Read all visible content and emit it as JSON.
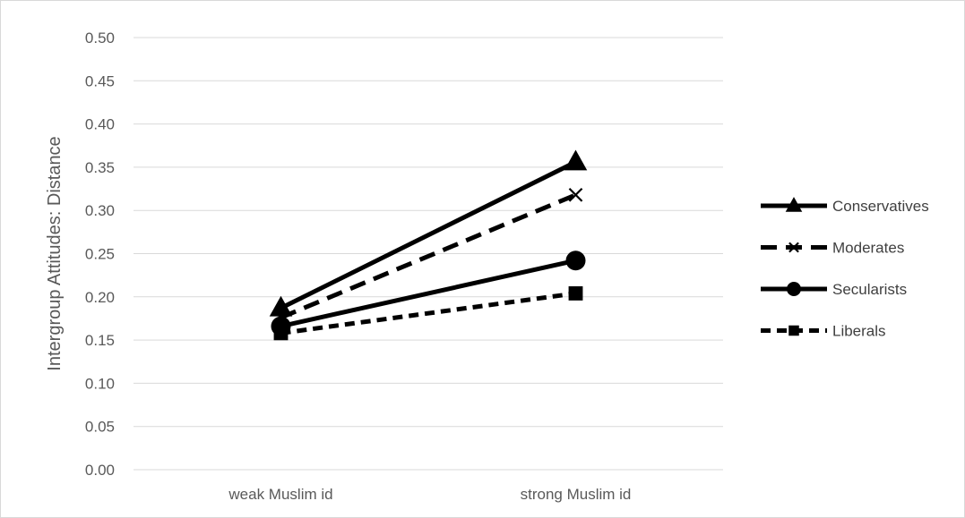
{
  "chart_data": {
    "type": "line",
    "title": "",
    "xlabel": "",
    "ylabel": "Intergroup Attitudes: Distance",
    "categories": [
      "weak Muslim id",
      "strong Muslim id"
    ],
    "ylim": [
      0,
      0.5
    ],
    "yticks": [
      "0.00",
      "0.05",
      "0.10",
      "0.15",
      "0.20",
      "0.25",
      "0.30",
      "0.35",
      "0.40",
      "0.45",
      "0.50"
    ],
    "grid": true,
    "legend_position": "right",
    "series": [
      {
        "name": "Conservatives",
        "values": [
          0.187,
          0.356
        ],
        "line": "solid",
        "marker": "triangle",
        "color": "#000000"
      },
      {
        "name": "Moderates",
        "values": [
          0.176,
          0.318
        ],
        "line": "dashed",
        "marker": "x",
        "color": "#000000"
      },
      {
        "name": "Secularists",
        "values": [
          0.166,
          0.242
        ],
        "line": "solid",
        "marker": "circle",
        "color": "#000000"
      },
      {
        "name": "Liberals",
        "values": [
          0.158,
          0.204
        ],
        "line": "dotted-dash",
        "marker": "square",
        "color": "#000000"
      }
    ]
  },
  "colors": {
    "grid": "#d9d9d9",
    "axis_text": "#595959",
    "series": "#000000"
  }
}
